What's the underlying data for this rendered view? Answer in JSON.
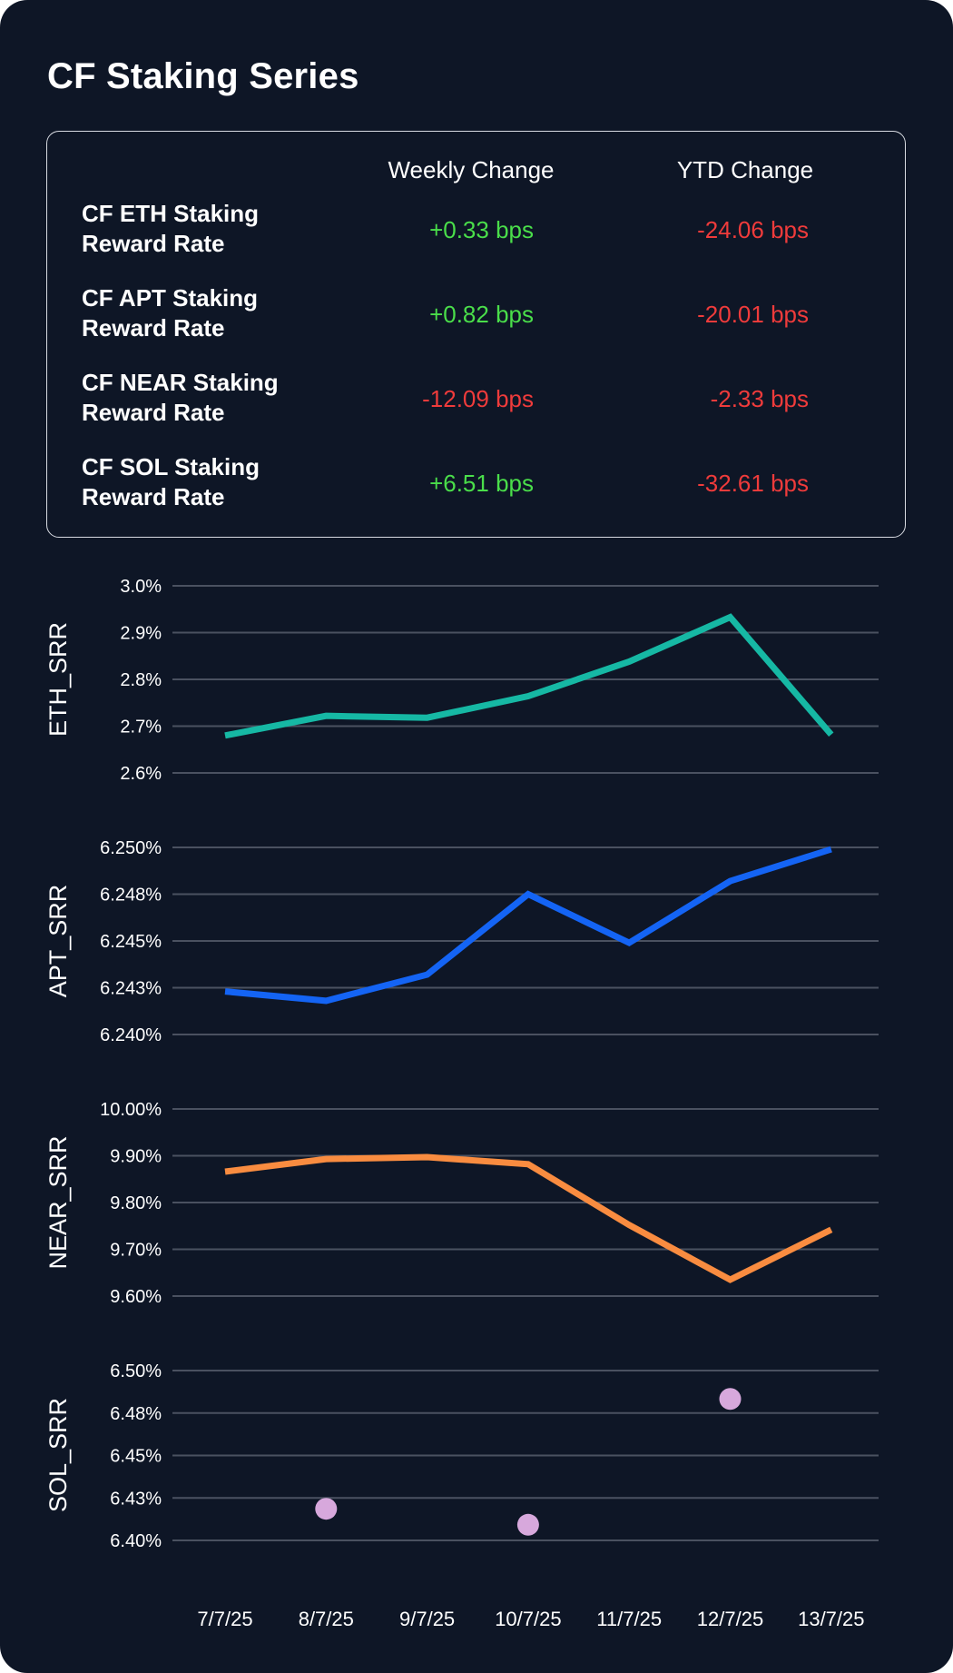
{
  "title": "CF Staking Series",
  "summary_table": {
    "headers": [
      "Weekly Change",
      "YTD Change"
    ],
    "rows": [
      {
        "label_line1": "CF ETH Staking",
        "label_line2": "Reward Rate",
        "weekly": "+0.33 bps",
        "ytd": "-24.06 bps",
        "weekly_sign": "pos",
        "ytd_sign": "neg"
      },
      {
        "label_line1": "CF APT Staking",
        "label_line2": "Reward Rate",
        "weekly": "+0.82 bps",
        "ytd": "-20.01 bps",
        "weekly_sign": "pos",
        "ytd_sign": "neg"
      },
      {
        "label_line1": "CF NEAR Staking",
        "label_line2": "Reward Rate",
        "weekly": "-12.09 bps",
        "ytd": "-2.33 bps",
        "weekly_sign": "neg",
        "ytd_sign": "neg"
      },
      {
        "label_line1": "CF SOL Staking",
        "label_line2": "Reward Rate",
        "weekly": "+6.51 bps",
        "ytd": "-32.61 bps",
        "weekly_sign": "pos",
        "ytd_sign": "neg"
      }
    ]
  },
  "colors": {
    "background": "#0e1626",
    "grid": "#4a5160",
    "text": "#ffffff",
    "positive": "#4ade4a",
    "negative": "#ef3b3b"
  },
  "chart_data": [
    {
      "type": "line",
      "ylabel": "ETH_SRR",
      "x": [
        "7/7/25",
        "8/7/25",
        "9/7/25",
        "10/7/25",
        "11/7/25",
        "12/7/25",
        "13/7/25"
      ],
      "values": [
        2.68,
        2.722,
        2.718,
        2.764,
        2.838,
        2.933,
        2.682
      ],
      "ylim": [
        2.6,
        3.0
      ],
      "yticks": [
        3.0,
        2.9,
        2.8,
        2.7,
        2.6
      ],
      "ytick_labels": [
        "3.0%",
        "2.9%",
        "2.8%",
        "2.7%",
        "2.6%"
      ],
      "color": "#16b8a4"
    },
    {
      "type": "line",
      "ylabel": "APT_SRR",
      "x": [
        "7/7/25",
        "8/7/25",
        "9/7/25",
        "10/7/25",
        "11/7/25",
        "12/7/25",
        "13/7/25"
      ],
      "values": [
        6.2423,
        6.2418,
        6.2432,
        6.2475,
        6.2449,
        6.2482,
        6.2499
      ],
      "ylim": [
        6.24,
        6.25
      ],
      "yticks": [
        6.25,
        6.2475,
        6.245,
        6.2425,
        6.24
      ],
      "ytick_labels": [
        "6.250%",
        "6.248%",
        "6.245%",
        "6.243%",
        "6.240%"
      ],
      "color": "#1464f4"
    },
    {
      "type": "line",
      "ylabel": "NEAR_SRR",
      "x": [
        "7/7/25",
        "8/7/25",
        "9/7/25",
        "10/7/25",
        "11/7/25",
        "12/7/25",
        "13/7/25"
      ],
      "values": [
        9.866,
        9.893,
        9.897,
        9.882,
        9.752,
        9.635,
        9.742
      ],
      "ylim": [
        9.6,
        10.0
      ],
      "yticks": [
        10.0,
        9.9,
        9.8,
        9.7,
        9.6
      ],
      "ytick_labels": [
        "10.00%",
        "9.90%",
        "9.80%",
        "9.70%",
        "9.60%"
      ],
      "color": "#f98c40"
    },
    {
      "type": "scatter",
      "ylabel": "SOL_SRR",
      "x": [
        "7/7/25",
        "8/7/25",
        "9/7/25",
        "10/7/25",
        "11/7/25",
        "12/7/25",
        "13/7/25"
      ],
      "points": [
        {
          "x": "8/7/25",
          "y": 6.4186
        },
        {
          "x": "10/7/25",
          "y": 6.4092
        },
        {
          "x": "12/7/25",
          "y": 6.4833
        }
      ],
      "ylim": [
        6.4,
        6.5
      ],
      "yticks": [
        6.5,
        6.475,
        6.45,
        6.425,
        6.4
      ],
      "ytick_labels": [
        "6.50%",
        "6.48%",
        "6.45%",
        "6.43%",
        "6.40%"
      ],
      "color": "#d7a8dc"
    }
  ],
  "x_tick_labels": [
    "7/7/25",
    "8/7/25",
    "9/7/25",
    "10/7/25",
    "11/7/25",
    "12/7/25",
    "13/7/25"
  ]
}
